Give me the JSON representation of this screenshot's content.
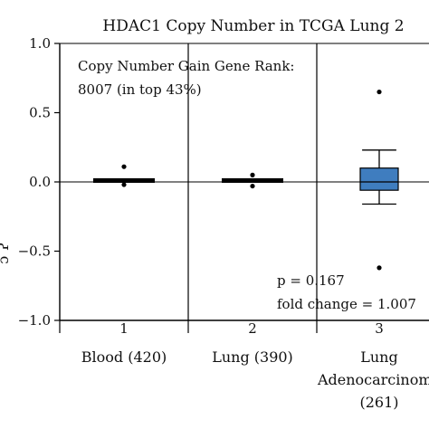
{
  "chart_data": {
    "type": "box",
    "title": "HDAC1 Copy Number in TCGA Lung 2",
    "ylim": [
      -1.0,
      1.0
    ],
    "y_ticks": [
      "1.0",
      "0.5",
      "0.0",
      "−0.5",
      "−1.0"
    ],
    "y_tick_values": [
      1.0,
      0.5,
      0.0,
      -0.5,
      -1.0
    ],
    "ylabel_fragment": "ɔ  Ɂ",
    "categories": [
      {
        "index": "1",
        "label_lines": [
          "Blood (420)"
        ],
        "median": 0.01,
        "q1": 0.0,
        "q3": 0.02,
        "whisker_low": 0.0,
        "whisker_high": 0.02,
        "outliers": [
          0.11,
          -0.02
        ],
        "box_color": "#000000"
      },
      {
        "index": "2",
        "label_lines": [
          "Lung (390)"
        ],
        "median": 0.01,
        "q1": 0.0,
        "q3": 0.02,
        "whisker_low": 0.0,
        "whisker_high": 0.02,
        "outliers": [
          0.05,
          -0.03
        ],
        "box_color": "#000000"
      },
      {
        "index": "3",
        "label_lines": [
          "Lung",
          "Adenocarcinoma",
          "(261)"
        ],
        "median": 0.0,
        "q1": -0.06,
        "q3": 0.1,
        "whisker_low": -0.16,
        "whisker_high": 0.23,
        "outliers": [
          0.65,
          -0.62
        ],
        "box_color": "#3f7dbf"
      }
    ],
    "annotations": {
      "rank_line1": "Copy Number Gain Gene Rank:",
      "rank_line2": "8007 (in top 43%)",
      "pvalue": "p = 0.167",
      "fold_change": "fold change = 1.007"
    },
    "grid": false
  }
}
